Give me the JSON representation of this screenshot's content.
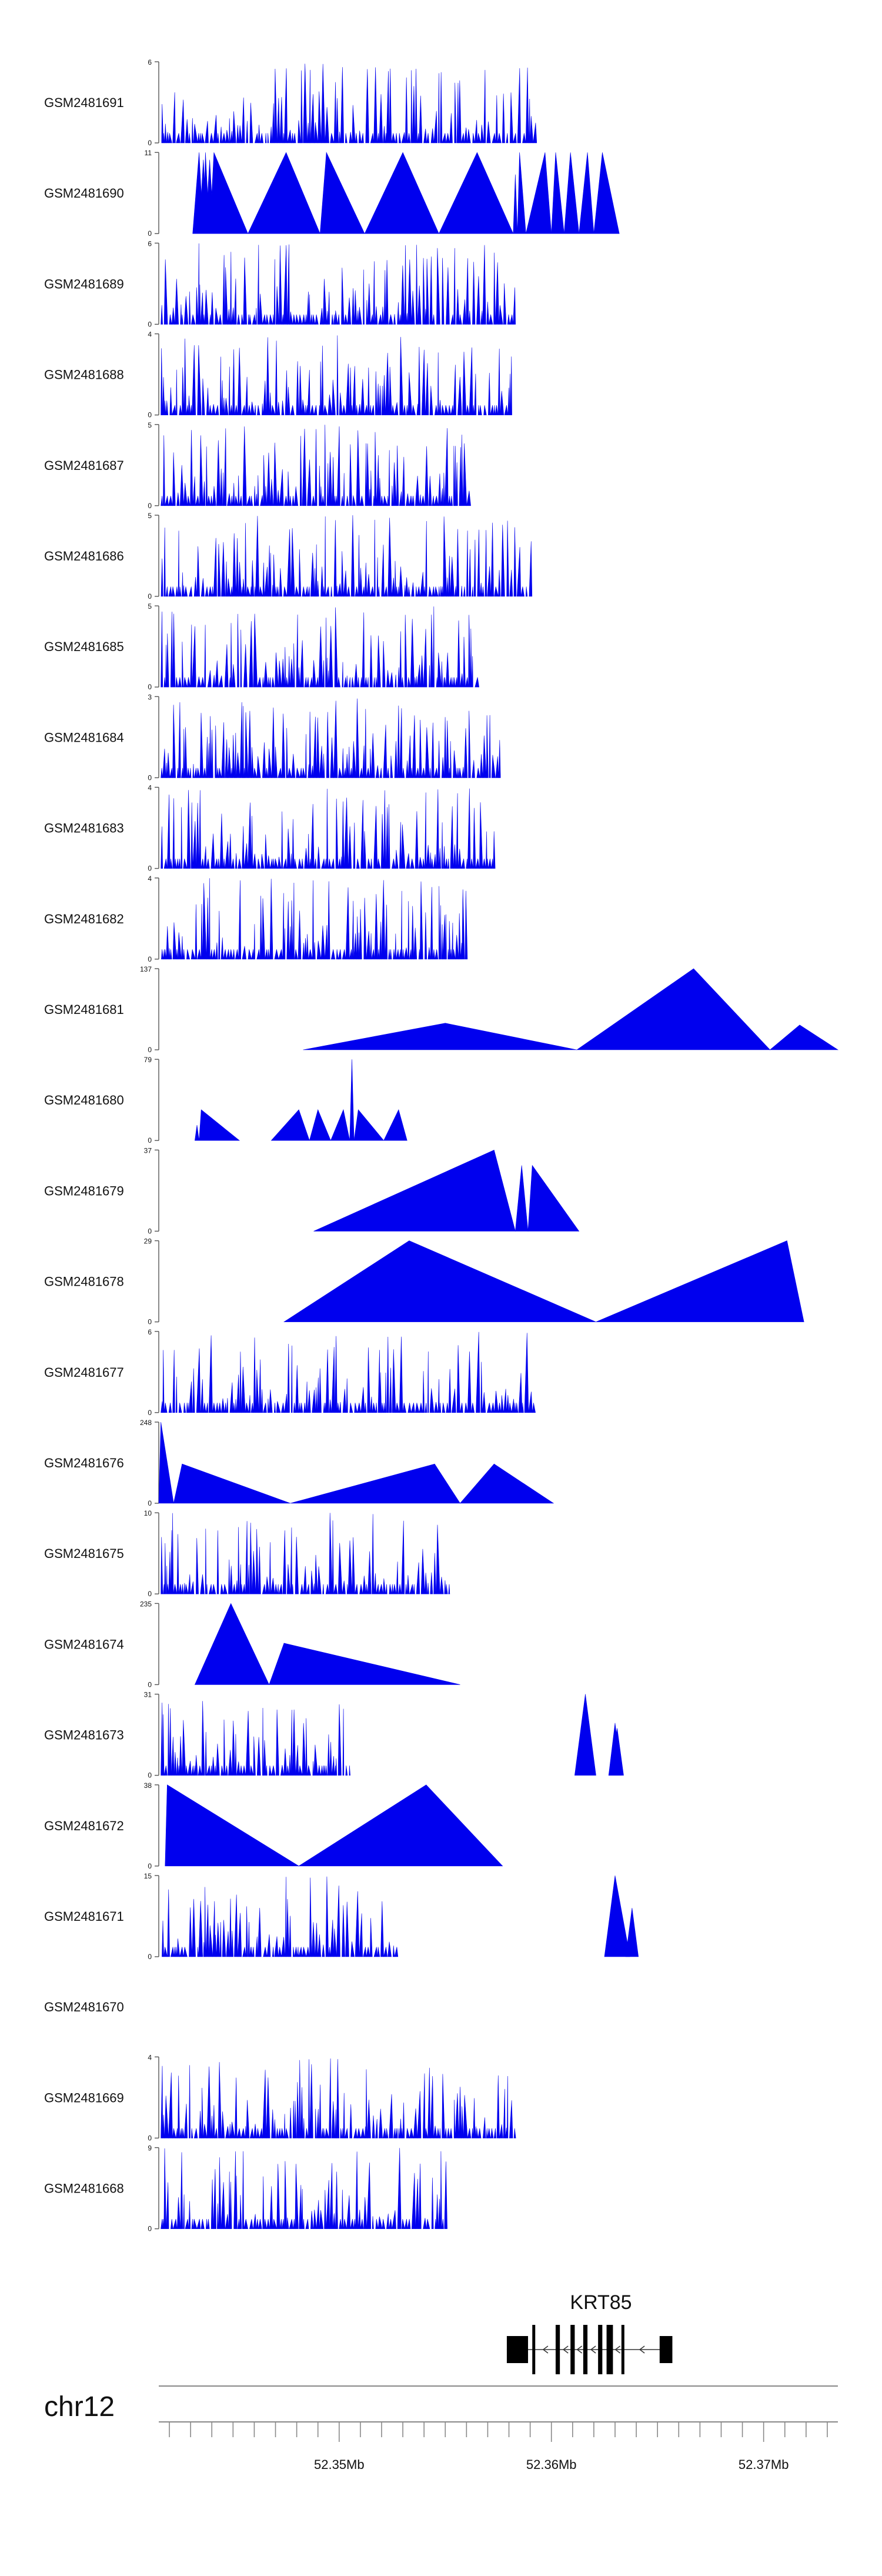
{
  "chart_data": {
    "type": "area",
    "title": "",
    "chromosome": "chr12",
    "gene": {
      "name": "KRT85",
      "strand": "-"
    },
    "xlim": [
      52.3415,
      52.3735
    ],
    "xunit": "Mb",
    "axis_ticks": [
      {
        "value": 52.35,
        "label": "52.35Mb"
      },
      {
        "value": 52.36,
        "label": "52.36Mb"
      },
      {
        "value": 52.37,
        "label": "52.37Mb"
      }
    ],
    "tracks": [
      {
        "name": "GSM2481691",
        "ymax": "6",
        "ymin": "0",
        "style": "dense",
        "seed": 11,
        "max": 6,
        "count": 120,
        "empty": false
      },
      {
        "name": "GSM2481690",
        "ymax": "11",
        "ymin": "0",
        "style": "sparse",
        "max": 11,
        "peaks": [
          [
            52.3431,
            52.3434,
            52.3436,
            11
          ],
          [
            52.3434,
            52.3436,
            52.3438,
            10
          ],
          [
            52.3436,
            52.3437,
            52.3439,
            11
          ],
          [
            52.3437,
            52.3439,
            52.3441,
            10
          ],
          [
            52.3439,
            52.3441,
            52.3457,
            11
          ],
          [
            52.3457,
            52.3475,
            52.3491,
            11
          ],
          [
            52.3491,
            52.3494,
            52.3512,
            11
          ],
          [
            52.3512,
            52.353,
            52.3547,
            11
          ],
          [
            52.3547,
            52.3565,
            52.3582,
            11
          ],
          [
            52.3582,
            52.3583,
            52.3584,
            8
          ],
          [
            52.3584,
            52.3585,
            52.3588,
            11
          ],
          [
            52.3588,
            52.3597,
            52.36,
            11
          ],
          [
            52.36,
            52.3602,
            52.3606,
            11
          ],
          [
            52.3606,
            52.3609,
            52.3613,
            11
          ],
          [
            52.3613,
            52.3617,
            52.362,
            11
          ],
          [
            52.362,
            52.3624,
            52.3632,
            11
          ]
        ]
      },
      {
        "name": "GSM2481689",
        "ymax": "6",
        "ymin": "0",
        "style": "dense",
        "seed": 23,
        "max": 6,
        "count": 120,
        "empty": false
      },
      {
        "name": "GSM2481688",
        "ymax": "4",
        "ymin": "0",
        "style": "dense",
        "seed": 37,
        "max": 4,
        "count": 120,
        "empty": false
      },
      {
        "name": "GSM2481687",
        "ymax": "5",
        "ymin": "0",
        "style": "dense",
        "seed": 41,
        "max": 5,
        "count": 110,
        "empty": false
      },
      {
        "name": "GSM2481686",
        "ymax": "5",
        "ymin": "0",
        "style": "dense",
        "seed": 53,
        "max": 5,
        "count": 130,
        "empty": false
      },
      {
        "name": "GSM2481685",
        "ymax": "5",
        "ymin": "0",
        "style": "dense",
        "seed": 67,
        "max": 5,
        "count": 110,
        "empty": false
      },
      {
        "name": "GSM2481684",
        "ymax": "3",
        "ymin": "0",
        "style": "dense",
        "seed": 71,
        "max": 3,
        "count": 120,
        "empty": false
      },
      {
        "name": "GSM2481683",
        "ymax": "4",
        "ymin": "0",
        "style": "dense",
        "seed": 83,
        "max": 4,
        "count": 115,
        "empty": false
      },
      {
        "name": "GSM2481682",
        "ymax": "4",
        "ymin": "0",
        "style": "dense",
        "seed": 97,
        "max": 4,
        "count": 115,
        "empty": false
      },
      {
        "name": "GSM2481681",
        "ymax": "137",
        "ymin": "0",
        "style": "sparse",
        "max": 137,
        "peaks": [
          [
            52.3483,
            52.355,
            52.3612,
            45
          ],
          [
            52.3612,
            52.3667,
            52.3703,
            137
          ],
          [
            52.3703,
            52.3717,
            52.3735,
            42
          ]
        ]
      },
      {
        "name": "GSM2481680",
        "ymax": "79",
        "ymin": "0",
        "style": "sparse",
        "max": 79,
        "peaks": [
          [
            52.3432,
            52.3433,
            52.3434,
            15
          ],
          [
            52.3434,
            52.3435,
            52.3453,
            30
          ],
          [
            52.3468,
            52.3481,
            52.3486,
            30
          ],
          [
            52.3486,
            52.349,
            52.3496,
            30
          ],
          [
            52.3496,
            52.3502,
            52.3505,
            30
          ],
          [
            52.3505,
            52.3506,
            52.3507,
            79
          ],
          [
            52.3507,
            52.3509,
            52.3521,
            30
          ],
          [
            52.3521,
            52.3528,
            52.3532,
            30
          ]
        ]
      },
      {
        "name": "GSM2481679",
        "ymax": "37",
        "ymin": "0",
        "style": "sparse",
        "max": 37,
        "peaks": [
          [
            52.3488,
            52.3573,
            52.3583,
            37
          ],
          [
            52.3583,
            52.3586,
            52.3589,
            30
          ],
          [
            52.3589,
            52.3591,
            52.3613,
            30
          ]
        ]
      },
      {
        "name": "GSM2481678",
        "ymax": "29",
        "ymin": "0",
        "style": "sparse",
        "max": 29,
        "peaks": [
          [
            52.3474,
            52.3533,
            52.3621,
            29
          ],
          [
            52.3621,
            52.3711,
            52.3719,
            29
          ]
        ]
      },
      {
        "name": "GSM2481677",
        "ymax": "6",
        "ymin": "0",
        "style": "dense",
        "seed": 101,
        "max": 6,
        "count": 125,
        "empty": false
      },
      {
        "name": "GSM2481676",
        "ymax": "248",
        "ymin": "0",
        "style": "sparse",
        "max": 248,
        "peaks": [
          [
            52.3415,
            52.3416,
            52.3422,
            248
          ],
          [
            52.3422,
            52.3426,
            52.3477,
            120
          ],
          [
            52.3477,
            52.3545,
            52.3557,
            120
          ],
          [
            52.3557,
            52.3573,
            52.3601,
            120
          ]
        ]
      },
      {
        "name": "GSM2481675",
        "ymax": "10",
        "ymin": "0",
        "style": "dense",
        "seed": 113,
        "max": 10,
        "count": 100,
        "empty": false
      },
      {
        "name": "GSM2481674",
        "ymax": "235",
        "ymin": "0",
        "style": "sparse",
        "max": 235,
        "peaks": [
          [
            52.3432,
            52.3449,
            52.3467,
            235
          ],
          [
            52.3467,
            52.3474,
            52.3557,
            120
          ]
        ]
      },
      {
        "name": "GSM2481673",
        "ymax": "31",
        "ymin": "0",
        "style": "dense",
        "seed": 127,
        "max": 31,
        "count": 70,
        "empty": false,
        "extra": [
          [
            52.3611,
            52.3616,
            52.3621,
            31
          ],
          [
            52.3627,
            52.363,
            52.3633,
            20
          ],
          [
            52.3627,
            52.3631,
            52.3634,
            18
          ]
        ]
      },
      {
        "name": "GSM2481672",
        "ymax": "38",
        "ymin": "0",
        "style": "sparse",
        "max": 38,
        "peaks": [
          [
            52.3418,
            52.3419,
            52.3481,
            38
          ],
          [
            52.3481,
            52.3541,
            52.3577,
            38
          ]
        ]
      },
      {
        "name": "GSM2481671",
        "ymax": "15",
        "ymin": "0",
        "style": "dense",
        "seed": 131,
        "max": 15,
        "count": 75,
        "empty": false,
        "extra": [
          [
            52.3625,
            52.363,
            52.3637,
            15
          ],
          [
            52.3635,
            52.3638,
            52.3641,
            9
          ]
        ]
      },
      {
        "name": "GSM2481670",
        "ymax": "",
        "ymin": "",
        "style": "dense",
        "seed": 1,
        "max": 1,
        "count": 0,
        "empty": true
      },
      {
        "name": "GSM2481669",
        "ymax": "4",
        "ymin": "0",
        "style": "dense",
        "seed": 139,
        "max": 4,
        "count": 125,
        "empty": false
      },
      {
        "name": "GSM2481668",
        "ymax": "9",
        "ymin": "0",
        "style": "dense",
        "seed": 149,
        "max": 9,
        "count": 95,
        "empty": false
      }
    ],
    "gene_model": {
      "start": 52.3579,
      "end": 52.3657,
      "exons": [
        [
          52.3579,
          52.3589
        ],
        [
          52.3591,
          52.3592
        ],
        [
          52.3602,
          52.3604
        ],
        [
          52.3609,
          52.3611
        ],
        [
          52.3615,
          52.3617
        ],
        [
          52.3622,
          52.3624
        ],
        [
          52.3626,
          52.3629
        ],
        [
          52.3633,
          52.3634
        ],
        [
          52.3651,
          52.3657
        ]
      ]
    }
  },
  "colors": {
    "fill": "#0000ee",
    "axis": "#555555",
    "text": "#111111"
  }
}
